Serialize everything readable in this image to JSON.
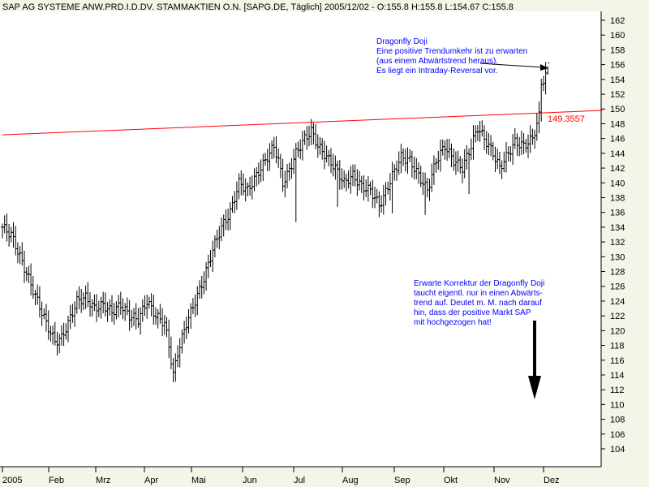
{
  "chart_data": {
    "type": "ohlc",
    "title": "SAP AG SYSTEME ANW.PRD.I.D.DV. STAMMAKTIEN O.N. [SAPG.DE, Täglich] 2005/12/02 - O:155.8 H:155.8 L:154.67 C:155.8",
    "ylim": [
      102,
      163
    ],
    "y_ticks": [
      104,
      106,
      108,
      110,
      112,
      114,
      116,
      118,
      120,
      122,
      124,
      126,
      128,
      130,
      132,
      134,
      136,
      138,
      140,
      142,
      144,
      146,
      148,
      150,
      152,
      154,
      156,
      158,
      160,
      162
    ],
    "x_ticks": [
      "2005",
      "Feb",
      "Mrz",
      "Apr",
      "Mai",
      "Jun",
      "Jul",
      "Aug",
      "Sep",
      "Okt",
      "Nov",
      "Dez"
    ],
    "anchors": [
      [
        0,
        134
      ],
      [
        4,
        133
      ],
      [
        8,
        130
      ],
      [
        12,
        127
      ],
      [
        16,
        124
      ],
      [
        20,
        121
      ],
      [
        24,
        118.5
      ],
      [
        27,
        119
      ],
      [
        30,
        121
      ],
      [
        34,
        124
      ],
      [
        38,
        124.5
      ],
      [
        42,
        123
      ],
      [
        46,
        123.5
      ],
      [
        50,
        122.5
      ],
      [
        54,
        123.5
      ],
      [
        58,
        122
      ],
      [
        62,
        121.5
      ],
      [
        66,
        124
      ],
      [
        70,
        122
      ],
      [
        74,
        121
      ],
      [
        76,
        118
      ],
      [
        78,
        114
      ],
      [
        80,
        117
      ],
      [
        84,
        121
      ],
      [
        88,
        124
      ],
      [
        92,
        127
      ],
      [
        96,
        131
      ],
      [
        100,
        134
      ],
      [
        104,
        136
      ],
      [
        108,
        140
      ],
      [
        112,
        139
      ],
      [
        116,
        141
      ],
      [
        120,
        143
      ],
      [
        124,
        145
      ],
      [
        126,
        143
      ],
      [
        128,
        140
      ],
      [
        130,
        141
      ],
      [
        134,
        144
      ],
      [
        138,
        146
      ],
      [
        141,
        147
      ],
      [
        144,
        145
      ],
      [
        148,
        143.5
      ],
      [
        152,
        142
      ],
      [
        156,
        140
      ],
      [
        160,
        141
      ],
      [
        164,
        139.5
      ],
      [
        168,
        139
      ],
      [
        172,
        137
      ],
      [
        174,
        138
      ],
      [
        178,
        141
      ],
      [
        182,
        143.5
      ],
      [
        186,
        143
      ],
      [
        190,
        141
      ],
      [
        194,
        139
      ],
      [
        198,
        143
      ],
      [
        202,
        145
      ],
      [
        206,
        143
      ],
      [
        210,
        142
      ],
      [
        214,
        145
      ],
      [
        217,
        147.5
      ],
      [
        220,
        146
      ],
      [
        224,
        144
      ],
      [
        227,
        142
      ],
      [
        230,
        143.5
      ],
      [
        234,
        145.5
      ],
      [
        238,
        145
      ],
      [
        242,
        146
      ],
      [
        245,
        149
      ],
      [
        246,
        153.5
      ],
      [
        248,
        154.5
      ],
      [
        249,
        155.8
      ]
    ],
    "spikes": [
      [
        134,
        -7
      ],
      [
        153,
        -4.5
      ],
      [
        178,
        -3
      ],
      [
        193,
        -3
      ],
      [
        213,
        -4
      ]
    ],
    "resistance": {
      "start": [
        0,
        146.5
      ],
      "end": [
        274,
        149.8
      ],
      "label": "149.3557"
    },
    "annotations": [
      {
        "lines": [
          "Dragonfly Doji",
          "Eine positive Trendumkehr ist zu erwarten",
          "(aus einem Abwärtstrend heraus).",
          "Es liegt ein Intraday-Reversal vor."
        ]
      },
      {
        "lines": [
          "Erwarte Korrektur der Dragonfly Doji",
          "taucht eigentl. nur in einen Abwärts-",
          "trend auf. Deutet m. M. nach darauf",
          "hin, dass der positive Markt SAP",
          "mit hochgezogen hat!"
        ]
      }
    ],
    "colors": {
      "bars": "#000000",
      "resistance": "#ff0000",
      "label": "#ff0000",
      "annotation": "#0000ff",
      "background": "#f4f4e9",
      "plot_background": "#ffffff"
    }
  }
}
